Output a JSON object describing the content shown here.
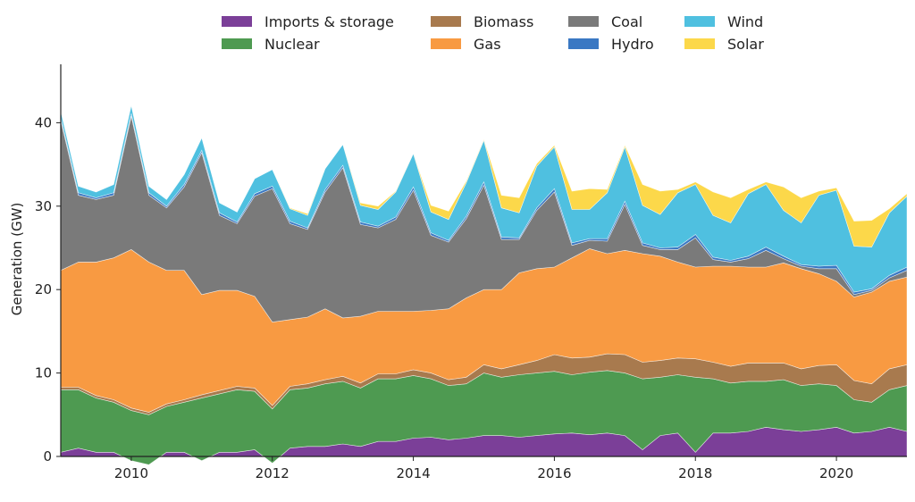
{
  "chart_data": {
    "type": "area",
    "title": "",
    "xlabel": "",
    "ylabel": "Generation (GW)",
    "xlim": [
      2009.0,
      2021.0
    ],
    "ylim": [
      0,
      47
    ],
    "x_ticks": [
      "2010",
      "2012",
      "2014",
      "2016",
      "2018",
      "2020"
    ],
    "y_ticks": [
      "0",
      "10",
      "20",
      "30",
      "40"
    ],
    "grid": false,
    "legend_position": "top-center",
    "stacked": true,
    "x": [
      2009.0,
      2009.25,
      2009.5,
      2009.75,
      2010.0,
      2010.25,
      2010.5,
      2010.75,
      2011.0,
      2011.25,
      2011.5,
      2011.75,
      2012.0,
      2012.25,
      2012.5,
      2012.75,
      2013.0,
      2013.25,
      2013.5,
      2013.75,
      2014.0,
      2014.25,
      2014.5,
      2014.75,
      2015.0,
      2015.25,
      2015.5,
      2015.75,
      2016.0,
      2016.25,
      2016.5,
      2016.75,
      2017.0,
      2017.25,
      2017.5,
      2017.75,
      2018.0,
      2018.25,
      2018.5,
      2018.75,
      2019.0,
      2019.25,
      2019.5,
      2019.75,
      2020.0,
      2020.25,
      2020.5,
      2020.75,
      2021.0
    ],
    "series": [
      {
        "name": "Imports & storage",
        "color": "#7b3f98",
        "values": [
          0.5,
          1.0,
          0.5,
          0.5,
          -0.5,
          -1.0,
          0.5,
          0.5,
          -0.5,
          0.5,
          0.5,
          0.8,
          -0.8,
          1.0,
          1.2,
          1.2,
          1.5,
          1.2,
          1.8,
          1.8,
          2.2,
          2.3,
          2.0,
          2.2,
          2.5,
          2.5,
          2.3,
          2.5,
          2.7,
          2.8,
          2.6,
          2.8,
          2.5,
          0.8,
          2.5,
          2.8,
          0.5,
          2.8,
          2.8,
          3.0,
          3.5,
          3.2,
          3.0,
          3.2,
          3.5,
          2.8,
          3.0,
          3.5,
          3.0
        ]
      },
      {
        "name": "Nuclear",
        "color": "#4e9a51",
        "values": [
          7.5,
          7.0,
          6.5,
          6.0,
          6.0,
          6.0,
          5.5,
          6.0,
          7.5,
          7.0,
          7.5,
          7.0,
          6.5,
          7.0,
          7.0,
          7.5,
          7.5,
          7.0,
          7.5,
          7.5,
          7.5,
          7.0,
          6.5,
          6.5,
          7.5,
          7.0,
          7.5,
          7.5,
          7.5,
          7.0,
          7.5,
          7.5,
          7.5,
          8.5,
          7.0,
          7.0,
          9.0,
          6.5,
          6.0,
          6.0,
          5.5,
          6.0,
          5.5,
          5.5,
          5.0,
          4.0,
          3.5,
          4.5,
          5.5
        ]
      },
      {
        "name": "Biomass",
        "color": "#a87a4e",
        "values": [
          0.3,
          0.3,
          0.3,
          0.3,
          0.3,
          0.3,
          0.3,
          0.3,
          0.4,
          0.4,
          0.4,
          0.4,
          0.4,
          0.4,
          0.5,
          0.5,
          0.6,
          0.6,
          0.6,
          0.6,
          0.7,
          0.7,
          0.7,
          0.8,
          1.0,
          1.0,
          1.2,
          1.5,
          2.0,
          2.0,
          1.8,
          2.0,
          2.2,
          2.0,
          2.0,
          2.0,
          2.2,
          2.0,
          2.0,
          2.2,
          2.2,
          2.0,
          2.0,
          2.2,
          2.5,
          2.3,
          2.2,
          2.5,
          2.5
        ]
      },
      {
        "name": "Gas",
        "color": "#f89a42",
        "values": [
          14.0,
          15.0,
          16.0,
          17.0,
          19.0,
          18.0,
          16.0,
          15.5,
          12.0,
          12.0,
          11.5,
          11.0,
          10.0,
          8.0,
          8.0,
          8.5,
          7.0,
          8.0,
          7.5,
          7.5,
          7.0,
          7.5,
          8.5,
          9.5,
          9.0,
          9.5,
          11.0,
          11.0,
          10.5,
          12.0,
          13.0,
          12.0,
          12.5,
          13.0,
          12.5,
          11.5,
          11.0,
          11.5,
          12.0,
          11.5,
          11.5,
          12.0,
          12.0,
          11.0,
          10.0,
          10.0,
          11.0,
          10.5,
          10.5
        ]
      },
      {
        "name": "Coal",
        "color": "#7a7a7a",
        "values": [
          18.0,
          8.0,
          7.5,
          7.5,
          16.0,
          8.0,
          7.5,
          10.0,
          17.0,
          9.0,
          8.0,
          12.0,
          16.0,
          11.5,
          10.5,
          14.0,
          18.0,
          11.0,
          10.0,
          11.0,
          14.5,
          9.0,
          8.0,
          9.5,
          12.5,
          6.0,
          4.0,
          7.0,
          9.0,
          1.5,
          1.0,
          1.5,
          5.5,
          1.0,
          0.8,
          1.5,
          3.5,
          0.8,
          0.5,
          1.0,
          2.0,
          0.5,
          0.3,
          0.6,
          1.5,
          0.3,
          0.2,
          0.4,
          0.8
        ]
      },
      {
        "name": "Hydro",
        "color": "#3a78c3",
        "values": [
          0.3,
          0.3,
          0.2,
          0.3,
          0.3,
          0.3,
          0.2,
          0.3,
          0.3,
          0.3,
          0.2,
          0.3,
          0.3,
          0.3,
          0.2,
          0.3,
          0.3,
          0.3,
          0.2,
          0.3,
          0.4,
          0.3,
          0.2,
          0.3,
          0.4,
          0.3,
          0.2,
          0.3,
          0.4,
          0.3,
          0.2,
          0.3,
          0.4,
          0.3,
          0.2,
          0.3,
          0.4,
          0.3,
          0.2,
          0.3,
          0.4,
          0.3,
          0.2,
          0.3,
          0.4,
          0.3,
          0.2,
          0.3,
          0.4
        ]
      },
      {
        "name": "Wind",
        "color": "#4fc0e0",
        "values": [
          0.8,
          0.8,
          0.7,
          1.0,
          1.0,
          0.8,
          0.8,
          1.2,
          1.5,
          1.2,
          1.2,
          1.8,
          2.0,
          1.5,
          1.5,
          2.5,
          2.5,
          2.0,
          2.0,
          3.0,
          4.0,
          2.5,
          2.5,
          4.0,
          5.0,
          3.5,
          3.0,
          5.0,
          5.0,
          4.0,
          3.5,
          5.5,
          6.5,
          4.5,
          4.0,
          6.5,
          6.0,
          5.0,
          4.5,
          7.5,
          7.5,
          5.5,
          5.0,
          8.5,
          9.0,
          5.5,
          5.0,
          7.5,
          8.5
        ]
      },
      {
        "name": "Solar",
        "color": "#fcd84a",
        "values": [
          0.0,
          0.0,
          0.0,
          0.0,
          0.0,
          0.0,
          0.0,
          0.0,
          0.0,
          0.0,
          0.0,
          0.0,
          0.0,
          0.1,
          0.2,
          0.0,
          0.0,
          0.3,
          0.4,
          0.1,
          0.0,
          0.8,
          1.0,
          0.2,
          0.1,
          1.5,
          1.8,
          0.3,
          0.2,
          2.2,
          2.5,
          0.4,
          0.2,
          2.5,
          2.8,
          0.4,
          0.3,
          2.8,
          3.0,
          0.5,
          0.3,
          2.8,
          3.0,
          0.5,
          0.3,
          3.0,
          3.2,
          0.5,
          0.3
        ]
      }
    ]
  }
}
